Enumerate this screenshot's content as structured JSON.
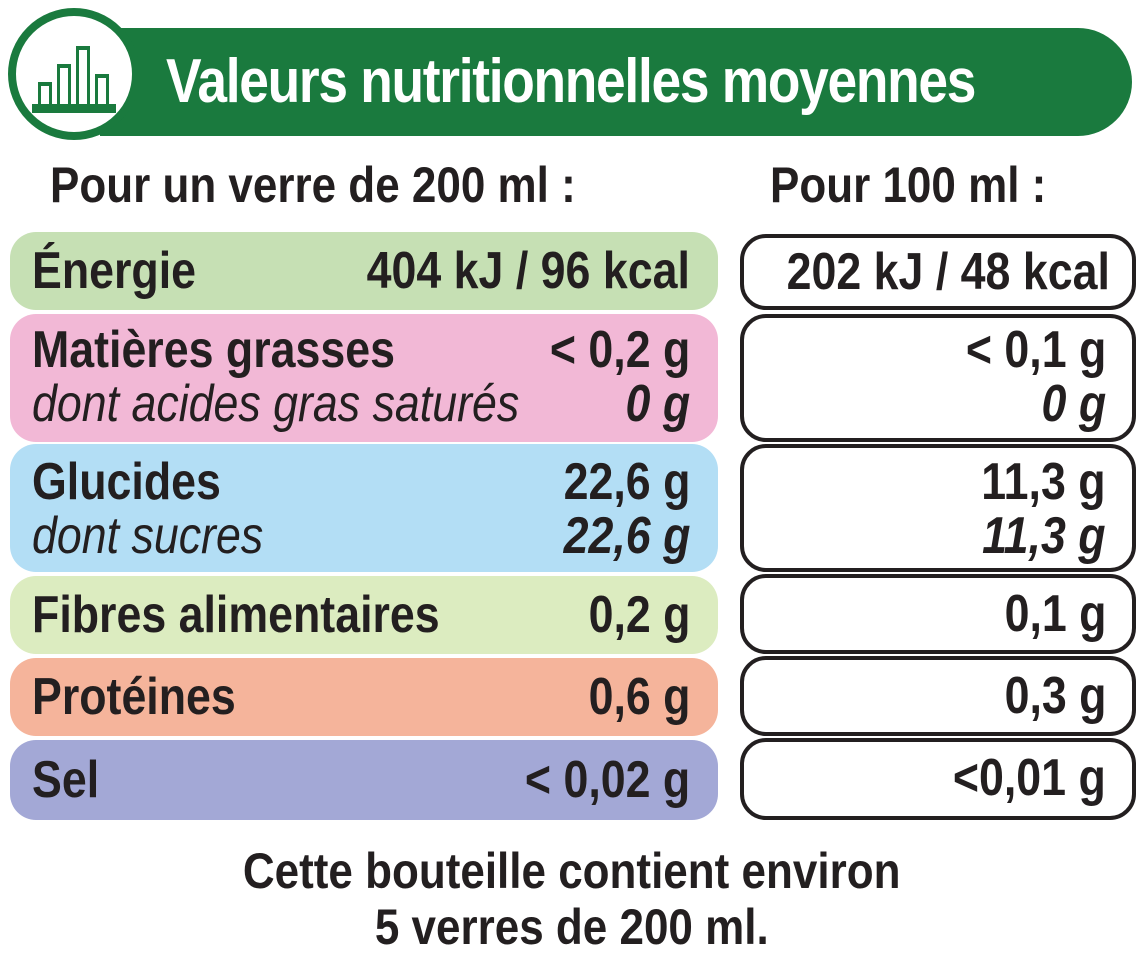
{
  "header": {
    "title": "Valeurs nutritionnelles moyennes",
    "logo_icon": "bar-chart-icon"
  },
  "columns": {
    "left": "Pour un verre de 200 ml :",
    "right": "Pour 100 ml :"
  },
  "rows": [
    {
      "label": "Énergie",
      "per_glass": "404 kJ / 96 kcal",
      "per_100ml": "202 kJ / 48 kcal",
      "color": "#c6e0b4"
    },
    {
      "label": "Matières grasses",
      "per_glass": "< 0,2 g",
      "per_100ml": "< 0,1 g",
      "sub_label": "dont acides gras saturés",
      "sub_per_glass": "0 g",
      "sub_per_100ml": "0 g",
      "color": "#f2b8d6"
    },
    {
      "label": "Glucides",
      "per_glass": "22,6 g",
      "per_100ml": "11,3 g",
      "sub_label": "dont sucres",
      "sub_per_glass": "22,6 g",
      "sub_per_100ml": "11,3 g",
      "color": "#b3def5"
    },
    {
      "label": "Fibres alimentaires",
      "per_glass": "0,2 g",
      "per_100ml": "0,1 g",
      "color": "#dcecc0"
    },
    {
      "label": "Protéines",
      "per_glass": "0,6 g",
      "per_100ml": "0,3 g",
      "color": "#f5b49b"
    },
    {
      "label": "Sel",
      "per_glass": "< 0,02 g",
      "per_100ml": "<0,01 g",
      "color": "#a3a8d6"
    }
  ],
  "footer": {
    "line1": "Cette bouteille contient environ",
    "line2": "5 verres de 200 ml."
  },
  "colors": {
    "brand_green": "#1a7a3e",
    "text": "#231f20"
  }
}
